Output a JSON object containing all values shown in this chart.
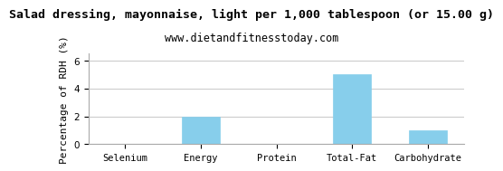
{
  "title": "Salad dressing, mayonnaise, light per 1,000 tablespoon (or 15.00 g)",
  "subtitle": "www.dietandfitnesstoday.com",
  "categories": [
    "Selenium",
    "Energy",
    "Protein",
    "Total-Fat",
    "Carbohydrate"
  ],
  "values": [
    0,
    2.0,
    0,
    5.0,
    1.0
  ],
  "bar_color": "#87CEEB",
  "ylabel": "Percentage of RDH (%)",
  "ylim": [
    0,
    6.5
  ],
  "yticks": [
    0,
    2,
    4,
    6
  ],
  "background_color": "#ffffff",
  "plot_bg_color": "#ffffff",
  "grid_color": "#cccccc",
  "title_fontsize": 9.5,
  "subtitle_fontsize": 8.5,
  "ylabel_fontsize": 8,
  "tick_fontsize": 7.5,
  "bar_width": 0.5
}
